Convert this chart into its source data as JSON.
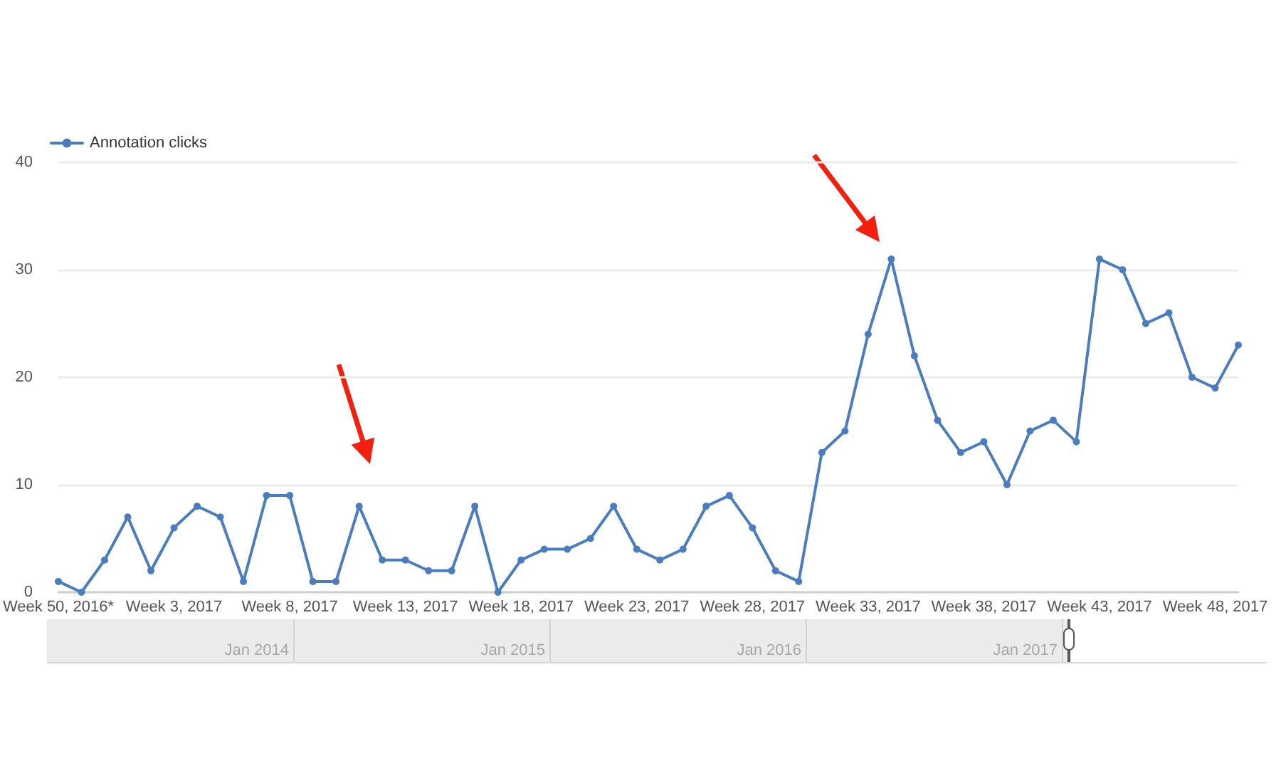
{
  "chart_data": {
    "type": "line",
    "categories": [
      "Week 50, 2016*",
      null,
      null,
      null,
      null,
      "Week 3, 2017",
      null,
      null,
      null,
      null,
      "Week 8, 2017",
      null,
      null,
      null,
      null,
      "Week 13, 2017",
      null,
      null,
      null,
      null,
      "Week 18, 2017",
      null,
      null,
      null,
      null,
      "Week 23, 2017",
      null,
      null,
      null,
      null,
      "Week 28, 2017",
      null,
      null,
      null,
      null,
      "Week 33, 2017",
      null,
      null,
      null,
      null,
      "Week 38, 2017",
      null,
      null,
      null,
      null,
      "Week 43, 2017",
      null,
      null,
      null,
      null,
      "Week 48, 2017",
      null
    ],
    "series": [
      {
        "name": "Annotation clicks",
        "color": "#4a7dc0",
        "values": [
          1,
          0,
          3,
          7,
          2,
          6,
          8,
          7,
          1,
          9,
          9,
          1,
          1,
          8,
          3,
          3,
          2,
          2,
          8,
          0,
          3,
          4,
          4,
          5,
          8,
          4,
          3,
          4,
          8,
          9,
          6,
          2,
          1,
          13,
          15,
          24,
          31,
          22,
          16,
          13,
          14,
          10,
          15,
          16,
          14,
          31,
          30,
          25,
          26,
          20,
          19,
          23
        ]
      }
    ],
    "ylim": [
      0,
      40
    ],
    "yticks": [
      0,
      10,
      20,
      30,
      40
    ],
    "grid": "y",
    "legend": "top left",
    "marker": "circle",
    "line_style": "solid",
    "annotations": [
      "Jan 2014",
      "Jan 2015",
      "Jan 2016",
      "Jan 2017"
    ]
  }
}
